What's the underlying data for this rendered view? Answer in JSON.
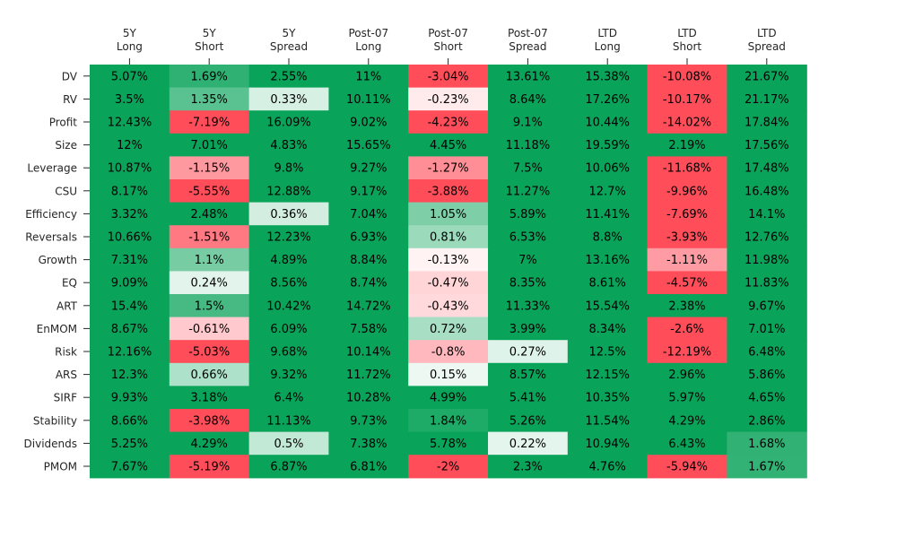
{
  "chart_data": {
    "type": "heatmap",
    "columns": [
      "5Y\nLong",
      "5Y\nShort",
      "5Y\nSpread",
      "Post-07\nLong",
      "Post-07\nShort",
      "Post-07\nSpread",
      "LTD\nLong",
      "LTD\nShort",
      "LTD\nSpread"
    ],
    "rows": [
      "DV",
      "RV",
      "Profit",
      "Size",
      "Leverage",
      "CSU",
      "Efficiency",
      "Reversals",
      "Growth",
      "EQ",
      "ART",
      "EnMOM",
      "Risk",
      "ARS",
      "SIRF",
      "Stability",
      "Dividends",
      "PMOM"
    ],
    "values": [
      [
        5.07,
        1.69,
        2.55,
        11.0,
        -3.04,
        13.61,
        15.38,
        -10.08,
        21.67
      ],
      [
        3.5,
        1.35,
        0.33,
        10.11,
        -0.23,
        8.64,
        17.26,
        -10.17,
        21.17
      ],
      [
        12.43,
        -7.19,
        16.09,
        9.02,
        -4.23,
        9.1,
        10.44,
        -14.02,
        17.84
      ],
      [
        12.0,
        7.01,
        4.83,
        15.65,
        4.45,
        11.18,
        19.59,
        2.19,
        17.56
      ],
      [
        10.87,
        -1.15,
        9.8,
        9.27,
        -1.27,
        7.5,
        10.06,
        -11.68,
        17.48
      ],
      [
        8.17,
        -5.55,
        12.88,
        9.17,
        -3.88,
        11.27,
        12.7,
        -9.96,
        16.48
      ],
      [
        3.32,
        2.48,
        0.36,
        7.04,
        1.05,
        5.89,
        11.41,
        -7.69,
        14.1
      ],
      [
        10.66,
        -1.51,
        12.23,
        6.93,
        0.81,
        6.53,
        8.8,
        -3.93,
        12.76
      ],
      [
        7.31,
        1.1,
        4.89,
        8.84,
        -0.13,
        7.0,
        13.16,
        -1.11,
        11.98
      ],
      [
        9.09,
        0.24,
        8.56,
        8.74,
        -0.47,
        8.35,
        8.61,
        -4.57,
        11.83
      ],
      [
        15.4,
        1.5,
        10.42,
        14.72,
        -0.43,
        11.33,
        15.54,
        2.38,
        9.67
      ],
      [
        8.67,
        -0.61,
        6.09,
        7.58,
        0.72,
        3.99,
        8.34,
        -2.6,
        7.01
      ],
      [
        12.16,
        -5.03,
        9.68,
        10.14,
        -0.8,
        0.27,
        12.5,
        -12.19,
        6.48
      ],
      [
        12.3,
        0.66,
        9.32,
        11.72,
        0.15,
        8.57,
        12.15,
        2.96,
        5.86
      ],
      [
        9.93,
        3.18,
        6.4,
        10.28,
        4.99,
        5.41,
        10.35,
        5.97,
        4.65
      ],
      [
        8.66,
        -3.98,
        11.13,
        9.73,
        1.84,
        5.26,
        11.54,
        4.29,
        2.86
      ],
      [
        5.25,
        4.29,
        0.5,
        7.38,
        5.78,
        0.22,
        10.94,
        6.43,
        1.68
      ],
      [
        7.67,
        -5.19,
        6.87,
        6.81,
        -2.0,
        2.3,
        4.76,
        -5.94,
        1.67
      ]
    ],
    "value_suffix": "%",
    "colormap": {
      "negative": "#ff4d5a",
      "neutral": "#ffffff",
      "positive": "#0aa35a",
      "vmin": -2,
      "vmax": 2
    },
    "x_axis_position": "top",
    "grid": false,
    "legend": "none"
  }
}
